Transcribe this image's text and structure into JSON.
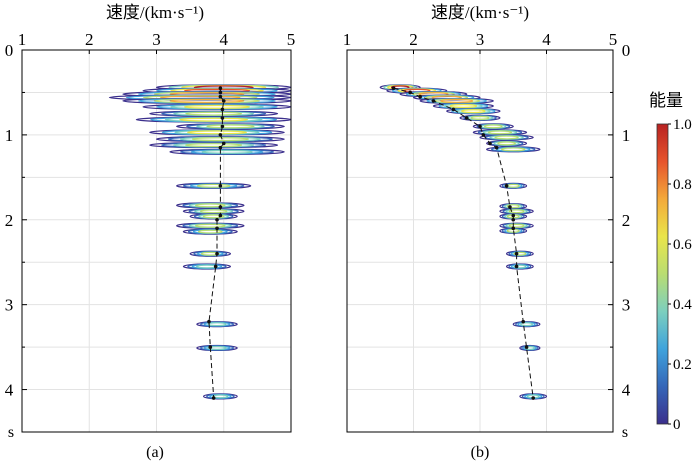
{
  "figure": {
    "x_axis_title": "速度/(km·s⁻¹)",
    "y_unit": "s",
    "colorbar_title": "能量"
  },
  "chart_data": [
    {
      "type": "scatter",
      "panel_label": "(a)",
      "x_axis": {
        "label": "速度/(km·s⁻¹)",
        "ticks": [
          1,
          2,
          3,
          4,
          5
        ],
        "range": [
          1,
          5
        ],
        "position": "top"
      },
      "y_axis": {
        "unit": "s",
        "ticks": [
          0,
          1,
          2,
          3,
          4
        ],
        "range": [
          0,
          4.5
        ],
        "direction": "down"
      },
      "grid": true,
      "picked_velocity": {
        "t": [
          0.45,
          0.5,
          0.55,
          0.6,
          0.7,
          0.8,
          0.9,
          1.0,
          1.1,
          1.15,
          1.6,
          1.85,
          1.95,
          2.0,
          2.1,
          2.4,
          2.55,
          3.2,
          3.5,
          4.1
        ],
        "v": [
          3.95,
          3.95,
          3.95,
          4.0,
          3.98,
          3.98,
          3.98,
          3.95,
          4.0,
          3.95,
          3.95,
          3.95,
          3.95,
          3.9,
          3.9,
          3.9,
          3.88,
          3.78,
          3.8,
          3.85
        ]
      },
      "energy_clusters": [
        {
          "t": 0.44,
          "vmin": 3.0,
          "vmax": 5.0,
          "peak": 1.0
        },
        {
          "t": 0.48,
          "vmin": 2.8,
          "vmax": 5.0,
          "peak": 0.9
        },
        {
          "t": 0.52,
          "vmin": 2.5,
          "vmax": 5.0,
          "peak": 0.8
        },
        {
          "t": 0.56,
          "vmin": 2.3,
          "vmax": 5.0,
          "peak": 0.7
        },
        {
          "t": 0.6,
          "vmin": 2.5,
          "vmax": 5.0,
          "peak": 0.8
        },
        {
          "t": 0.67,
          "vmin": 2.8,
          "vmax": 5.0,
          "peak": 0.6
        },
        {
          "t": 0.75,
          "vmin": 2.9,
          "vmax": 4.8,
          "peak": 0.5
        },
        {
          "t": 0.82,
          "vmin": 2.7,
          "vmax": 5.0,
          "peak": 0.6
        },
        {
          "t": 0.9,
          "vmin": 3.3,
          "vmax": 4.9,
          "peak": 0.5
        },
        {
          "t": 0.97,
          "vmin": 2.9,
          "vmax": 4.9,
          "peak": 0.6
        },
        {
          "t": 1.05,
          "vmin": 3.0,
          "vmax": 4.9,
          "peak": 0.55
        },
        {
          "t": 1.12,
          "vmin": 2.9,
          "vmax": 4.8,
          "peak": 0.5
        },
        {
          "t": 1.2,
          "vmin": 3.2,
          "vmax": 4.9,
          "peak": 0.4
        },
        {
          "t": 1.6,
          "vmin": 3.3,
          "vmax": 4.4,
          "peak": 0.45
        },
        {
          "t": 1.83,
          "vmin": 3.3,
          "vmax": 4.3,
          "peak": 0.5
        },
        {
          "t": 1.9,
          "vmin": 3.4,
          "vmax": 4.3,
          "peak": 0.55
        },
        {
          "t": 1.96,
          "vmin": 3.5,
          "vmax": 4.2,
          "peak": 0.5
        },
        {
          "t": 2.07,
          "vmin": 3.3,
          "vmax": 4.3,
          "peak": 0.5
        },
        {
          "t": 2.14,
          "vmin": 3.4,
          "vmax": 4.2,
          "peak": 0.45
        },
        {
          "t": 2.4,
          "vmin": 3.5,
          "vmax": 4.1,
          "peak": 0.45
        },
        {
          "t": 2.55,
          "vmin": 3.4,
          "vmax": 4.1,
          "peak": 0.4
        },
        {
          "t": 3.23,
          "vmin": 3.6,
          "vmax": 4.2,
          "peak": 0.4
        },
        {
          "t": 3.51,
          "vmin": 3.6,
          "vmax": 4.2,
          "peak": 0.35
        },
        {
          "t": 4.08,
          "vmin": 3.7,
          "vmax": 4.2,
          "peak": 0.35
        }
      ]
    },
    {
      "type": "scatter",
      "panel_label": "(b)",
      "x_axis": {
        "label": "速度/(km·s⁻¹)",
        "ticks": [
          1,
          2,
          3,
          4,
          5
        ],
        "range": [
          1,
          5
        ],
        "position": "top"
      },
      "y_axis": {
        "unit": "s",
        "ticks": [
          0,
          1,
          2,
          3,
          4
        ],
        "range": [
          0,
          4.5
        ],
        "direction": "down",
        "position": "right"
      },
      "grid": true,
      "picked_velocity": {
        "t": [
          0.45,
          0.5,
          0.55,
          0.6,
          0.7,
          0.8,
          0.9,
          1.0,
          1.1,
          1.15,
          1.6,
          1.85,
          1.95,
          2.0,
          2.1,
          2.4,
          2.55,
          3.2,
          3.5,
          4.1
        ],
        "v": [
          1.7,
          1.95,
          2.1,
          2.3,
          2.6,
          2.8,
          3.0,
          3.05,
          3.15,
          3.25,
          3.4,
          3.45,
          3.5,
          3.5,
          3.5,
          3.55,
          3.55,
          3.65,
          3.7,
          3.8
        ]
      },
      "energy_clusters": [
        {
          "t": 0.44,
          "vmin": 1.5,
          "vmax": 2.1,
          "peak": 1.0
        },
        {
          "t": 0.48,
          "vmin": 1.6,
          "vmax": 2.5,
          "peak": 0.9
        },
        {
          "t": 0.52,
          "vmin": 1.8,
          "vmax": 2.8,
          "peak": 0.8
        },
        {
          "t": 0.56,
          "vmin": 2.0,
          "vmax": 3.0,
          "peak": 0.8
        },
        {
          "t": 0.6,
          "vmin": 2.1,
          "vmax": 3.2,
          "peak": 0.7
        },
        {
          "t": 0.66,
          "vmin": 2.3,
          "vmax": 3.2,
          "peak": 0.6
        },
        {
          "t": 0.72,
          "vmin": 2.5,
          "vmax": 3.3,
          "peak": 0.6
        },
        {
          "t": 0.8,
          "vmin": 2.7,
          "vmax": 3.3,
          "peak": 0.55
        },
        {
          "t": 0.9,
          "vmin": 2.9,
          "vmax": 3.5,
          "peak": 0.55
        },
        {
          "t": 0.97,
          "vmin": 2.9,
          "vmax": 3.7,
          "peak": 0.5
        },
        {
          "t": 1.03,
          "vmin": 3.0,
          "vmax": 3.8,
          "peak": 0.55
        },
        {
          "t": 1.1,
          "vmin": 3.1,
          "vmax": 3.7,
          "peak": 0.5
        },
        {
          "t": 1.17,
          "vmin": 3.1,
          "vmax": 3.9,
          "peak": 0.45
        },
        {
          "t": 1.6,
          "vmin": 3.3,
          "vmax": 3.7,
          "peak": 0.45
        },
        {
          "t": 1.84,
          "vmin": 3.3,
          "vmax": 3.7,
          "peak": 0.5
        },
        {
          "t": 1.9,
          "vmin": 3.3,
          "vmax": 3.8,
          "peak": 0.55
        },
        {
          "t": 1.96,
          "vmin": 3.3,
          "vmax": 3.7,
          "peak": 0.5
        },
        {
          "t": 2.07,
          "vmin": 3.3,
          "vmax": 3.8,
          "peak": 0.5
        },
        {
          "t": 2.13,
          "vmin": 3.3,
          "vmax": 3.7,
          "peak": 0.45
        },
        {
          "t": 2.4,
          "vmin": 3.4,
          "vmax": 3.8,
          "peak": 0.45
        },
        {
          "t": 2.55,
          "vmin": 3.4,
          "vmax": 3.8,
          "peak": 0.4
        },
        {
          "t": 3.23,
          "vmin": 3.5,
          "vmax": 3.9,
          "peak": 0.4
        },
        {
          "t": 3.51,
          "vmin": 3.6,
          "vmax": 3.9,
          "peak": 0.35
        },
        {
          "t": 4.08,
          "vmin": 3.6,
          "vmax": 4.0,
          "peak": 0.35
        }
      ]
    }
  ],
  "colorbar": {
    "title": "能量",
    "ticks": [
      "1.0",
      "0.8",
      "0.6",
      "0.4",
      "0.2",
      "0"
    ],
    "range": [
      0,
      1
    ],
    "colors": [
      "#3b2f8c",
      "#3566b8",
      "#3fa3dc",
      "#7ccfbe",
      "#b9dd72",
      "#eae54a",
      "#f3a93a",
      "#e7542c",
      "#b82222"
    ]
  }
}
